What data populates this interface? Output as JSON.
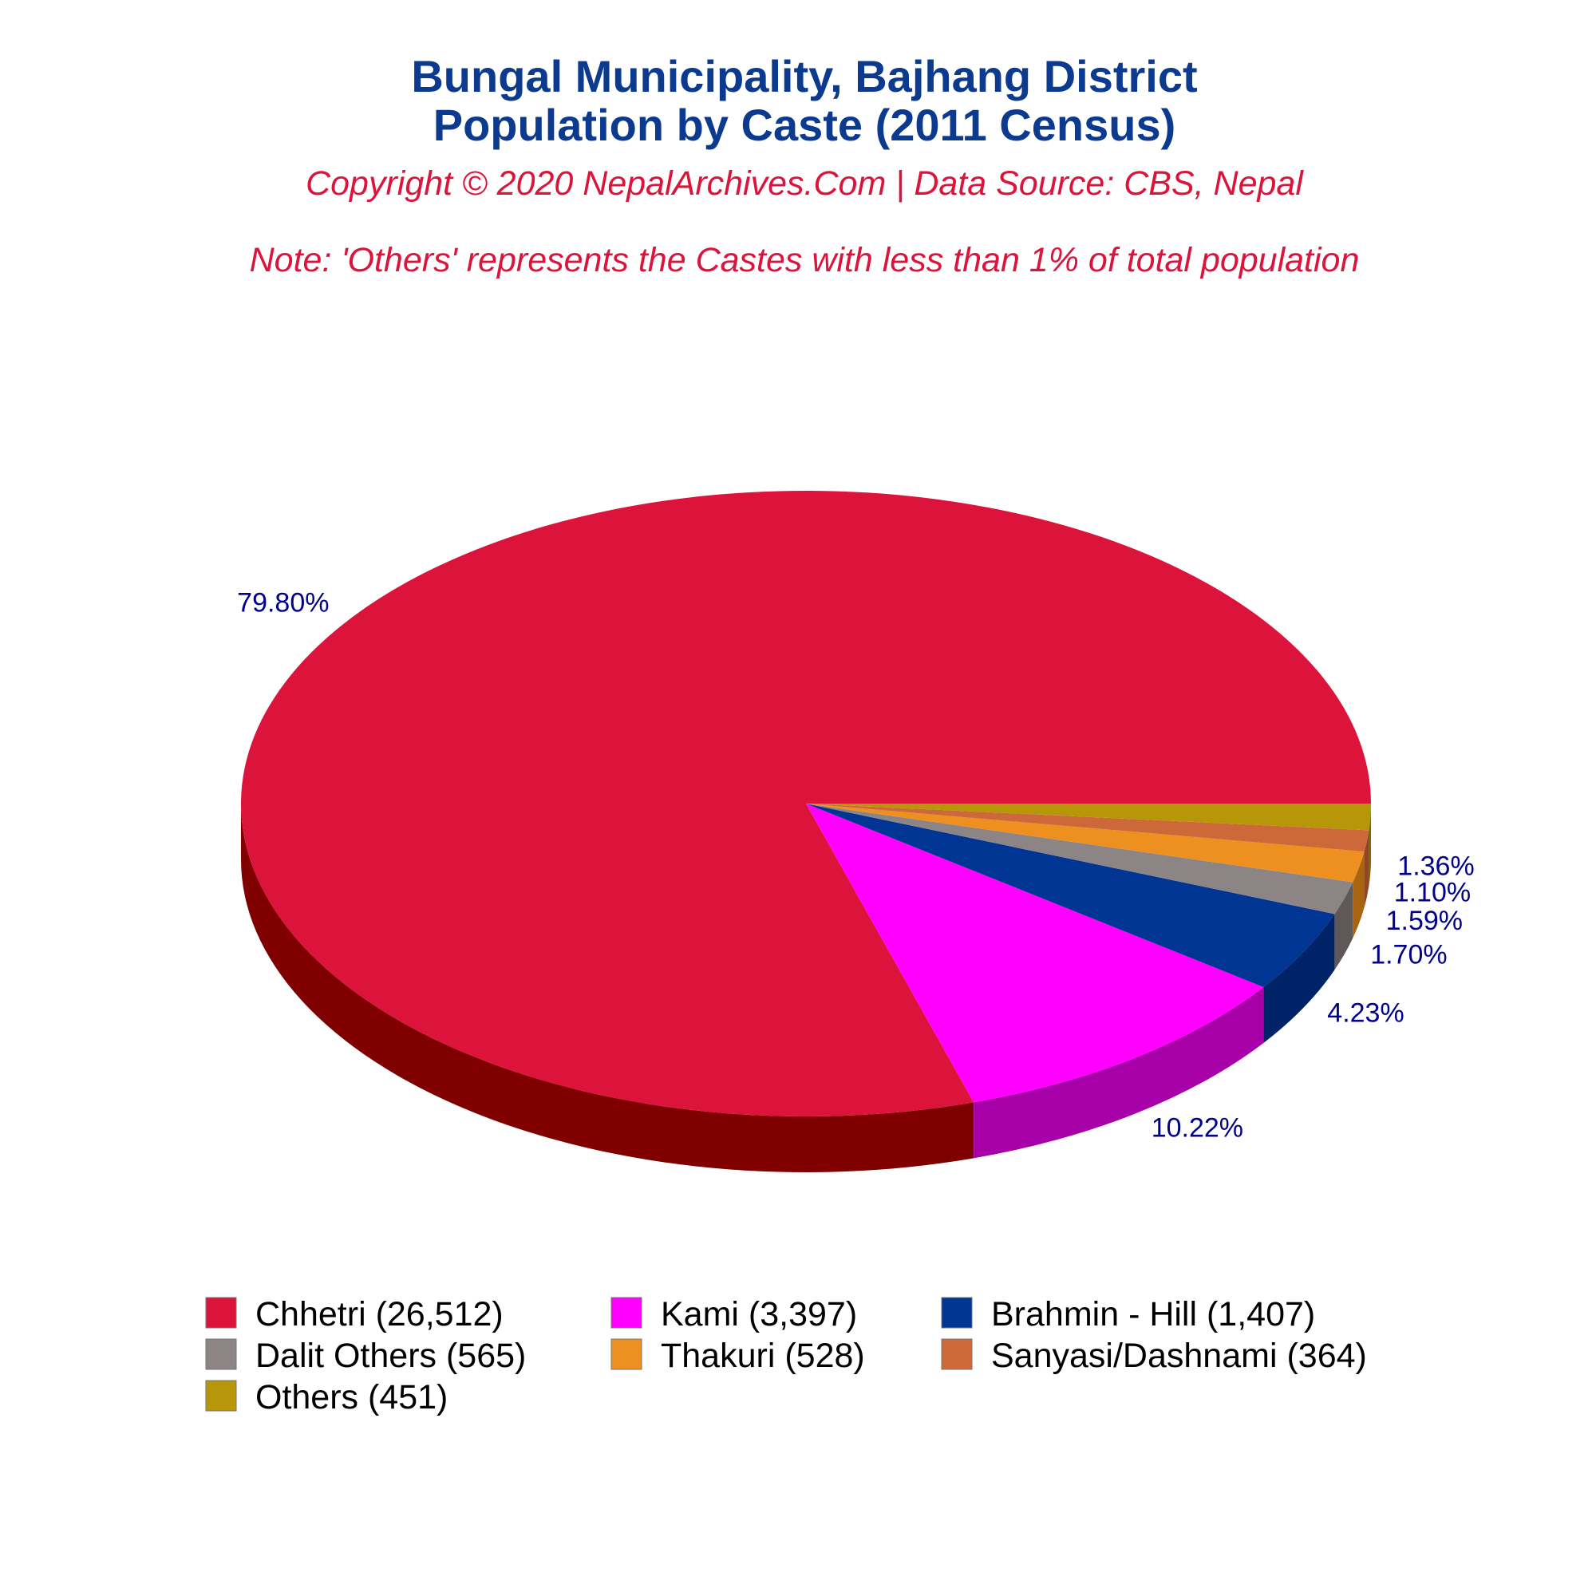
{
  "chart_data": {
    "type": "pie",
    "title_line1": "Bungal Municipality, Bajhang District",
    "title_line2": "Population by Caste (2011 Census)",
    "subtitle": "Copyright © 2020 NepalArchives.Com | Data Source: CBS, Nepal",
    "note": "Note: 'Others' represents the Castes with less than 1% of total population",
    "legend_placement": "bottom",
    "colors": {
      "title": "#0b3a8f",
      "subtitle": "#dc143c",
      "label": "#00008b"
    },
    "slices": [
      {
        "name": "Chhetri",
        "value": 26512,
        "percent": 79.8,
        "pct_label": "79.80%",
        "legend_label": "Chhetri (26,512)",
        "color": "#dc143c",
        "side_color": "#800000"
      },
      {
        "name": "Kami",
        "value": 3397,
        "percent": 10.22,
        "pct_label": "10.22%",
        "legend_label": "Kami (3,397)",
        "color": "#ff00ff",
        "side_color": "#a800a8"
      },
      {
        "name": "Brahmin - Hill",
        "value": 1407,
        "percent": 4.23,
        "pct_label": "4.23%",
        "legend_label": "Brahmin - Hill (1,407)",
        "color": "#003594",
        "side_color": "#002266"
      },
      {
        "name": "Dalit Others",
        "value": 565,
        "percent": 1.7,
        "pct_label": "1.70%",
        "legend_label": "Dalit Others (565)",
        "color": "#8c8485",
        "side_color": "#5e5859"
      },
      {
        "name": "Thakuri",
        "value": 528,
        "percent": 1.59,
        "pct_label": "1.59%",
        "legend_label": "Thakuri (528)",
        "color": "#ee9020",
        "side_color": "#a86410"
      },
      {
        "name": "Sanyasi/Dashnami",
        "value": 364,
        "percent": 1.1,
        "pct_label": "1.10%",
        "legend_label": "Sanyasi/Dashnami (364)",
        "color": "#cd6839",
        "side_color": "#8f4624"
      },
      {
        "name": "Others",
        "value": 451,
        "percent": 1.36,
        "pct_label": "1.36%",
        "legend_label": "Others (451)",
        "color": "#b8960a",
        "side_color": "#7e6606"
      }
    ]
  }
}
